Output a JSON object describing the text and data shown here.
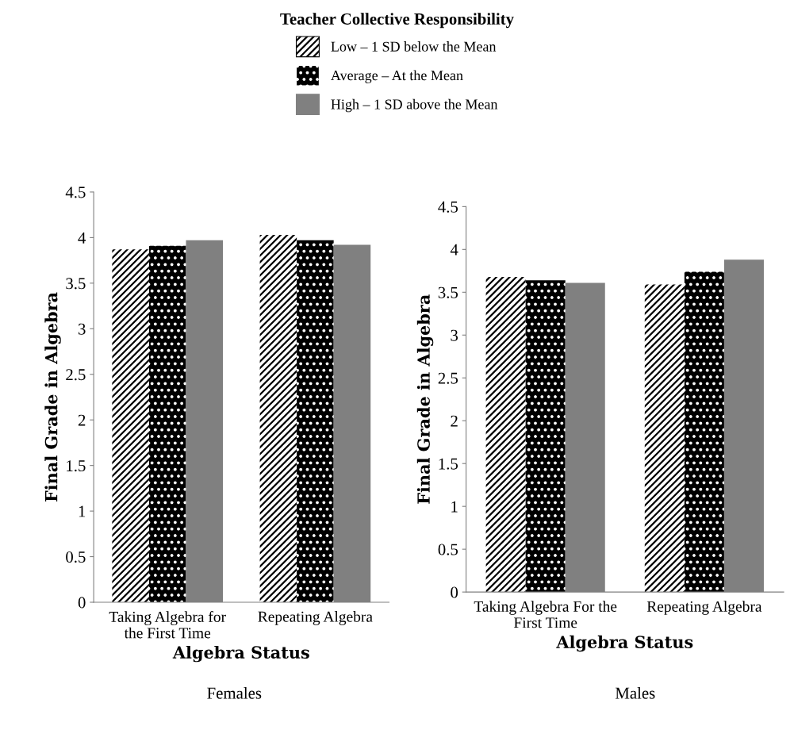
{
  "chart_data": [
    {
      "type": "bar",
      "legend_title": "Teacher Collective Responsibility",
      "legend": "top",
      "xlabel": "Algebra Status",
      "ylabel": "Final Grade in Algebra",
      "categories": [
        "Taking Algebra for the First Time",
        "Repeating Algebra"
      ],
      "series": [
        {
          "name": "Low – 1 SD below the Mean",
          "color": "#ffffff",
          "values": [
            3.87,
            4.03
          ]
        },
        {
          "name": "Average – At the Mean",
          "color": "#000000",
          "values": [
            3.91,
            3.97
          ]
        },
        {
          "name": "High – 1 SD above the Mean",
          "color": "#808080",
          "values": [
            3.97,
            3.92
          ]
        }
      ],
      "ylim": [
        0,
        4.5
      ],
      "yticks": [
        0,
        0.5,
        1,
        1.5,
        2,
        2.5,
        3,
        3.5,
        4,
        4.5
      ],
      "grid": false,
      "annotations": [
        "Females"
      ]
    },
    {
      "type": "bar",
      "xlabel": "Algebra Status",
      "ylabel": "Final Grade in Algebra",
      "categories": [
        "Taking Algebra For the First Time",
        "Repeating Algebra"
      ],
      "series": [
        {
          "color": "#ffffff",
          "values": [
            3.68,
            3.59
          ]
        },
        {
          "color": "#000000",
          "values": [
            3.64,
            3.74
          ]
        },
        {
          "color": "#808080",
          "values": [
            3.61,
            3.88
          ]
        }
      ],
      "ylim": [
        0,
        4.5
      ],
      "yticks": [
        0,
        0.5,
        1,
        1.5,
        2,
        2.5,
        3,
        3.5,
        4,
        4.5
      ],
      "grid": false,
      "annotations": [
        "Males"
      ]
    }
  ]
}
